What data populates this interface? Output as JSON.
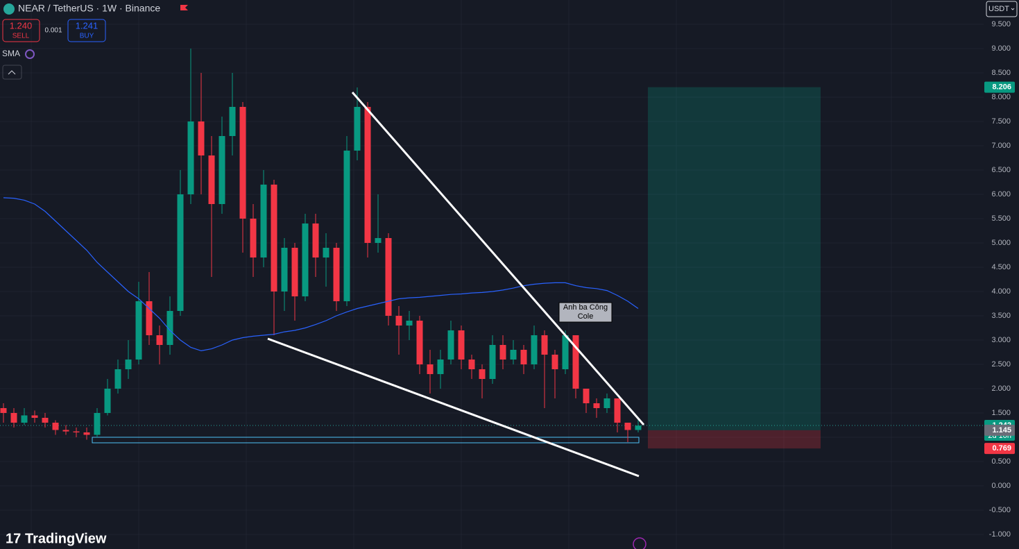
{
  "chart_data": {
    "type": "candlestick",
    "title": "NEAR / TetherUS · 1W · Binance",
    "sell_price": "1.240",
    "sell_label": "SELL",
    "spread": "0.001",
    "buy_price": "1.241",
    "buy_label": "BUY",
    "indicator": "SMA",
    "currency": "USDT",
    "annotation": "Anh ba Công Cole",
    "brand": "TradingView",
    "up_color": "#089981",
    "down_color": "#f23645",
    "sma_color": "#2962ff",
    "open": [
      1.6,
      1.5,
      1.3,
      1.45,
      1.4,
      1.3,
      1.15,
      1.12,
      1.1,
      1.05,
      1.5,
      2.0,
      2.4,
      2.6,
      3.8,
      3.1,
      2.9,
      3.6,
      6.0,
      7.5,
      6.8,
      5.8,
      7.2,
      7.8,
      5.5,
      4.7,
      6.2,
      4.0,
      4.9,
      3.9,
      5.4,
      4.7,
      4.9,
      3.8,
      6.9,
      7.8,
      5.0,
      5.1,
      3.5,
      3.3,
      3.4,
      2.5,
      2.3,
      2.6,
      3.2,
      2.6,
      2.4,
      2.2,
      2.9,
      2.6,
      2.8,
      2.5,
      3.1,
      2.7,
      2.4,
      3.1,
      2.0,
      1.7,
      1.6,
      1.8,
      1.3,
      1.15
    ],
    "high": [
      1.7,
      1.6,
      1.6,
      1.55,
      1.5,
      1.35,
      1.25,
      1.2,
      1.2,
      1.6,
      2.2,
      2.6,
      3.0,
      4.2,
      4.4,
      3.3,
      3.9,
      6.5,
      9.0,
      8.5,
      7.2,
      7.6,
      8.5,
      7.9,
      5.8,
      6.5,
      6.3,
      5.1,
      5.0,
      5.6,
      5.6,
      5.2,
      5.0,
      7.2,
      8.2,
      7.9,
      6.0,
      5.2,
      3.7,
      3.6,
      3.5,
      2.8,
      2.8,
      3.4,
      3.3,
      2.7,
      2.5,
      3.1,
      3.1,
      3.0,
      2.9,
      3.3,
      3.2,
      2.8,
      3.2,
      3.1,
      2.0,
      1.8,
      1.9,
      1.8,
      1.3,
      1.42
    ],
    "low": [
      1.3,
      1.2,
      1.25,
      1.3,
      1.2,
      1.05,
      1.05,
      1.0,
      0.95,
      1.0,
      1.45,
      1.9,
      2.2,
      2.5,
      2.9,
      2.5,
      2.7,
      3.5,
      5.8,
      6.0,
      4.3,
      5.6,
      6.8,
      4.8,
      4.3,
      4.5,
      3.1,
      3.6,
      3.4,
      3.8,
      4.3,
      4.1,
      3.6,
      3.7,
      6.7,
      4.7,
      4.8,
      3.3,
      2.7,
      3.0,
      2.3,
      1.9,
      2.0,
      2.5,
      2.4,
      2.2,
      1.8,
      2.1,
      2.4,
      2.5,
      2.3,
      2.4,
      1.6,
      1.8,
      2.3,
      1.8,
      1.5,
      1.4,
      1.5,
      1.1,
      0.9,
      1.1
    ],
    "close": [
      1.5,
      1.3,
      1.45,
      1.4,
      1.3,
      1.15,
      1.12,
      1.1,
      1.05,
      1.5,
      2.0,
      2.4,
      2.6,
      3.8,
      3.1,
      2.9,
      3.6,
      6.0,
      7.5,
      6.8,
      5.8,
      7.2,
      7.8,
      5.5,
      4.7,
      6.2,
      4.0,
      4.9,
      3.9,
      5.4,
      4.7,
      4.9,
      3.8,
      6.9,
      7.8,
      5.0,
      5.1,
      3.5,
      3.3,
      3.4,
      2.5,
      2.3,
      2.6,
      3.2,
      2.6,
      2.4,
      2.2,
      2.9,
      2.6,
      2.8,
      2.5,
      3.1,
      2.7,
      2.4,
      3.1,
      2.0,
      1.7,
      1.6,
      1.8,
      1.3,
      1.15,
      1.24
    ],
    "sma": [
      5.93,
      5.92,
      5.88,
      5.8,
      5.65,
      5.45,
      5.25,
      5.05,
      4.85,
      4.6,
      4.4,
      4.2,
      4.0,
      3.85,
      3.65,
      3.45,
      3.2,
      3.0,
      2.85,
      2.78,
      2.82,
      2.9,
      3.0,
      3.05,
      3.08,
      3.1,
      3.12,
      3.17,
      3.2,
      3.25,
      3.32,
      3.4,
      3.5,
      3.58,
      3.65,
      3.7,
      3.75,
      3.8,
      3.85,
      3.87,
      3.88,
      3.9,
      3.92,
      3.94,
      3.95,
      3.97,
      3.98,
      4.0,
      4.03,
      4.07,
      4.12,
      4.15,
      4.17,
      4.18,
      4.18,
      4.12,
      4.08,
      4.06,
      4.02,
      3.92,
      3.8,
      3.65
    ],
    "ylim": [
      -1.3,
      10.0
    ],
    "yticks": [
      {
        "value": 9.5,
        "label": "9.500"
      },
      {
        "value": 9,
        "label": "9.000"
      },
      {
        "value": 8.5,
        "label": "8.500"
      },
      {
        "value": 8,
        "label": "8.000"
      },
      {
        "value": 7.5,
        "label": "7.500"
      },
      {
        "value": 7,
        "label": "7.000"
      },
      {
        "value": 6.5,
        "label": "6.500"
      },
      {
        "value": 6,
        "label": "6.000"
      },
      {
        "value": 5.5,
        "label": "5.500"
      },
      {
        "value": 5,
        "label": "5.000"
      },
      {
        "value": 4.5,
        "label": "4.500"
      },
      {
        "value": 4,
        "label": "4.000"
      },
      {
        "value": 3.5,
        "label": "3.500"
      },
      {
        "value": 3,
        "label": "3.000"
      },
      {
        "value": 2.5,
        "label": "2.500"
      },
      {
        "value": 2,
        "label": "2.000"
      },
      {
        "value": 1.5,
        "label": "1.500"
      },
      {
        "value": 1,
        "label": "1.000"
      },
      {
        "value": 0.5,
        "label": "0.500"
      },
      {
        "value": 0,
        "label": "0.000"
      },
      {
        "value": -0.5,
        "label": "-0.500"
      },
      {
        "value": -1,
        "label": "-1.000"
      }
    ],
    "target": 8.206,
    "last_price": 1.242,
    "countdown": "2d 10h",
    "entry": 1.145,
    "stop": 0.769
  }
}
